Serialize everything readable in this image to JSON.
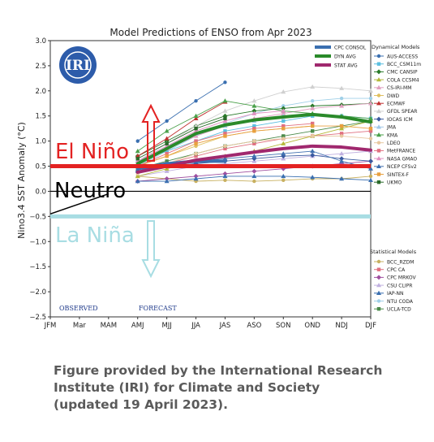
{
  "chart_data": {
    "type": "line",
    "title": "Model Predictions of ENSO from Apr 2023",
    "ylabel": "Nino3.4 SST Anomaly (°C)",
    "xlabel": "",
    "categories": [
      "JFM",
      "Mar",
      "MAM",
      "AMJ",
      "MJJ",
      "JJA",
      "JAS",
      "ASO",
      "SON",
      "OND",
      "NDJ",
      "DJF"
    ],
    "ylim": [
      -2.5,
      3.0
    ],
    "yticks": [
      "3.0",
      "2.5",
      "2.0",
      "1.5",
      "1.0",
      "0.5",
      "0.0",
      "−0.5",
      "−1.0",
      "−1.5",
      "−2.0",
      "−2.5"
    ],
    "grid": true,
    "logo_text": "IRI",
    "observed_label": "OBSERVED",
    "forecast_label": "FORECAST",
    "thresholds": {
      "el_nino": {
        "label": "El Niño",
        "value": 0.5,
        "color": "#e32222"
      },
      "neutral": {
        "label": "Neutro",
        "value": 0.0,
        "color": "#000000"
      },
      "la_nina": {
        "label": "La Niña",
        "value": -0.5,
        "color": "#a8dde3"
      }
    },
    "observed_series": {
      "x": [
        0,
        1,
        2
      ],
      "values": [
        -0.45,
        -0.25,
        -0.05
      ]
    },
    "average_series": [
      {
        "name": "CPC CONSOL",
        "color": "#3a6fb0",
        "width": 4,
        "x": [
          3,
          4,
          5,
          6
        ],
        "values": [
          0.45,
          0.55,
          0.6,
          0.6
        ]
      },
      {
        "name": "DYN AVG",
        "color": "#2a8a2a",
        "width": 4,
        "x": [
          3,
          4,
          5,
          6,
          7,
          8,
          9,
          10,
          11
        ],
        "values": [
          0.55,
          0.85,
          1.15,
          1.32,
          1.42,
          1.48,
          1.53,
          1.48,
          1.38
        ]
      },
      {
        "name": "STAT AVG",
        "color": "#a0286e",
        "width": 4,
        "x": [
          3,
          4,
          5,
          6,
          7,
          8,
          9,
          10,
          11
        ],
        "values": [
          0.38,
          0.5,
          0.62,
          0.7,
          0.78,
          0.85,
          0.9,
          0.88,
          0.82
        ]
      }
    ],
    "dynamical_models": [
      {
        "name": "AUS-ACCESS",
        "color": "#3a6fb0",
        "marker": "circle",
        "x": [
          3,
          4,
          5,
          6
        ],
        "values": [
          1.0,
          1.4,
          1.8,
          2.17
        ]
      },
      {
        "name": "BCC_CSM11m",
        "color": "#5bbfe0",
        "marker": "square",
        "x": [
          3,
          4,
          5,
          6,
          7,
          8,
          9,
          10,
          11
        ],
        "values": [
          0.6,
          0.8,
          1.0,
          1.2,
          1.3,
          1.4,
          1.5,
          1.5,
          1.45
        ]
      },
      {
        "name": "CMC CANSIP",
        "color": "#2a7a2a",
        "marker": "diamond",
        "x": [
          3,
          4,
          5,
          6,
          7,
          8,
          9,
          10,
          11
        ],
        "values": [
          0.7,
          1.0,
          1.3,
          1.5,
          1.6,
          1.65,
          1.7,
          1.72,
          1.75
        ]
      },
      {
        "name": "COLA CCSM4",
        "color": "#b5b83a",
        "marker": "triangle",
        "x": [
          3,
          4,
          5,
          6,
          7,
          8,
          9,
          10,
          11
        ],
        "values": [
          0.3,
          0.45,
          0.6,
          0.7,
          0.8,
          0.95,
          1.1,
          1.25,
          1.4
        ]
      },
      {
        "name": "CS-IRI-MM",
        "color": "#e0a0c0",
        "marker": "triangle",
        "x": [
          3,
          4,
          5,
          6,
          7,
          8,
          9,
          10,
          11
        ],
        "values": [
          0.6,
          0.85,
          1.1,
          1.3,
          1.45,
          1.55,
          1.65,
          1.7,
          1.75
        ]
      },
      {
        "name": "DWD",
        "color": "#e0c060",
        "marker": "circle",
        "x": [
          3,
          4,
          5,
          6,
          7,
          8,
          9
        ],
        "values": [
          0.5,
          0.7,
          0.9,
          1.1,
          1.2,
          1.25,
          1.3
        ]
      },
      {
        "name": "ECMWF",
        "color": "#c03030",
        "marker": "triangle",
        "x": [
          3,
          4,
          5,
          6
        ],
        "values": [
          0.7,
          1.05,
          1.45,
          1.78
        ]
      },
      {
        "name": "GFDL SPEAR",
        "color": "#d0d0d0",
        "marker": "triangle",
        "x": [
          3,
          4,
          5,
          6,
          7,
          8,
          9,
          10,
          11
        ],
        "values": [
          0.6,
          0.95,
          1.3,
          1.6,
          1.8,
          1.98,
          2.08,
          2.05,
          2.0
        ]
      },
      {
        "name": "IOCAS ICM",
        "color": "#3a5aa0",
        "marker": "diamond",
        "x": [
          3,
          4,
          5,
          6,
          7,
          8,
          9,
          10,
          11
        ],
        "values": [
          0.4,
          0.5,
          0.55,
          0.6,
          0.65,
          0.7,
          0.72,
          0.65,
          0.6
        ]
      },
      {
        "name": "JMA",
        "color": "#a0c8e8",
        "marker": "triangle",
        "x": [
          3,
          4,
          5,
          6,
          7,
          8
        ],
        "values": [
          0.6,
          0.9,
          1.15,
          1.3,
          1.4,
          1.5
        ]
      },
      {
        "name": "KMA",
        "color": "#4aa04a",
        "marker": "triangle",
        "x": [
          3,
          4,
          5,
          6,
          7,
          8,
          9,
          10,
          11
        ],
        "values": [
          0.8,
          1.2,
          1.5,
          1.8,
          1.7,
          1.6,
          1.55,
          1.5,
          1.45
        ]
      },
      {
        "name": "LDEO",
        "color": "#e8c8a0",
        "marker": "circle",
        "x": [
          3,
          4,
          5,
          6,
          7,
          8,
          9,
          10,
          11
        ],
        "values": [
          0.35,
          0.55,
          0.75,
          0.9,
          1.0,
          1.05,
          1.1,
          1.1,
          1.05
        ]
      },
      {
        "name": "MetFRANCE",
        "color": "#e07080",
        "marker": "square",
        "x": [
          3,
          4,
          5,
          6,
          7,
          8,
          9
        ],
        "values": [
          0.5,
          0.75,
          1.0,
          1.15,
          1.25,
          1.3,
          1.35
        ]
      },
      {
        "name": "NASA GMAO",
        "color": "#e090c0",
        "marker": "triangle",
        "x": [
          3,
          4,
          5,
          6,
          7,
          8
        ],
        "values": [
          0.6,
          0.9,
          1.2,
          1.4,
          1.55,
          1.6
        ]
      },
      {
        "name": "NCEP CFSv2",
        "color": "#4070b0",
        "marker": "triangle",
        "x": [
          3,
          4,
          5,
          6,
          7,
          8,
          9,
          10,
          11
        ],
        "values": [
          0.4,
          0.55,
          0.6,
          0.65,
          0.7,
          0.75,
          0.8,
          0.6,
          0.45
        ]
      },
      {
        "name": "SINTEX-F",
        "color": "#e8a040",
        "marker": "square",
        "x": [
          3,
          4,
          5,
          6,
          7,
          8,
          9,
          10,
          11
        ],
        "values": [
          0.5,
          0.7,
          0.95,
          1.1,
          1.2,
          1.25,
          1.3,
          1.3,
          1.25
        ]
      },
      {
        "name": "UKMO",
        "color": "#2a6a2a",
        "marker": "square",
        "x": [
          3,
          4,
          5,
          6
        ],
        "values": [
          0.65,
          0.95,
          1.25,
          1.45
        ]
      }
    ],
    "statistical_models": [
      {
        "name": "BCC_RZDM",
        "color": "#c8b060",
        "marker": "circle",
        "x": [
          3,
          4,
          5,
          6,
          7,
          8,
          9,
          10,
          11
        ],
        "values": [
          0.3,
          0.25,
          0.2,
          0.22,
          0.2,
          0.22,
          0.25,
          0.25,
          0.3
        ]
      },
      {
        "name": "CPC CA",
        "color": "#e07080",
        "marker": "square",
        "x": [
          3,
          4,
          5,
          6,
          7,
          8,
          9,
          10,
          11
        ],
        "values": [
          0.4,
          0.55,
          0.7,
          0.85,
          0.95,
          1.05,
          1.1,
          1.15,
          1.2
        ]
      },
      {
        "name": "CPC MRKOV",
        "color": "#a050a0",
        "marker": "diamond",
        "x": [
          3,
          4,
          5,
          6,
          7,
          8,
          9,
          10,
          11
        ],
        "values": [
          0.2,
          0.25,
          0.3,
          0.35,
          0.4,
          0.45,
          0.5,
          0.55,
          0.6
        ]
      },
      {
        "name": "CSU CLIPR",
        "color": "#c0b0e0",
        "marker": "triangle",
        "x": [
          3,
          4,
          5,
          6,
          7,
          8,
          9,
          10,
          11
        ],
        "values": [
          0.3,
          0.4,
          0.5,
          0.55,
          0.6,
          0.65,
          0.7,
          0.75,
          0.8
        ]
      },
      {
        "name": "IAP-NN",
        "color": "#3a6fb0",
        "marker": "triangle",
        "x": [
          3,
          4,
          5,
          6,
          7,
          8,
          9,
          10,
          11
        ],
        "values": [
          0.2,
          0.2,
          0.25,
          0.3,
          0.3,
          0.3,
          0.28,
          0.25,
          0.22
        ]
      },
      {
        "name": "NTU CODA",
        "color": "#a0d0e8",
        "marker": "circle",
        "x": [
          3,
          4,
          5,
          6,
          7,
          8,
          9,
          10,
          11
        ],
        "values": [
          0.5,
          0.8,
          1.1,
          1.35,
          1.55,
          1.7,
          1.8,
          1.85,
          1.85
        ]
      },
      {
        "name": "UCLA-TCD",
        "color": "#4a8a4a",
        "marker": "square",
        "x": [
          3,
          4,
          5,
          6,
          7,
          8,
          9,
          10,
          11
        ],
        "values": [
          0.45,
          0.6,
          0.75,
          0.9,
          1.0,
          1.1,
          1.2,
          1.3,
          1.4
        ]
      }
    ],
    "legend_groups": {
      "dynamical": "Dynamical Models",
      "statistical": "Statistical Models"
    },
    "legend_placement": "right"
  },
  "caption": {
    "line1": "Figure provided by the International Research",
    "line2": "Institute (IRI) for Climate and Society",
    "line3": "(updated 19 April 2023)."
  }
}
